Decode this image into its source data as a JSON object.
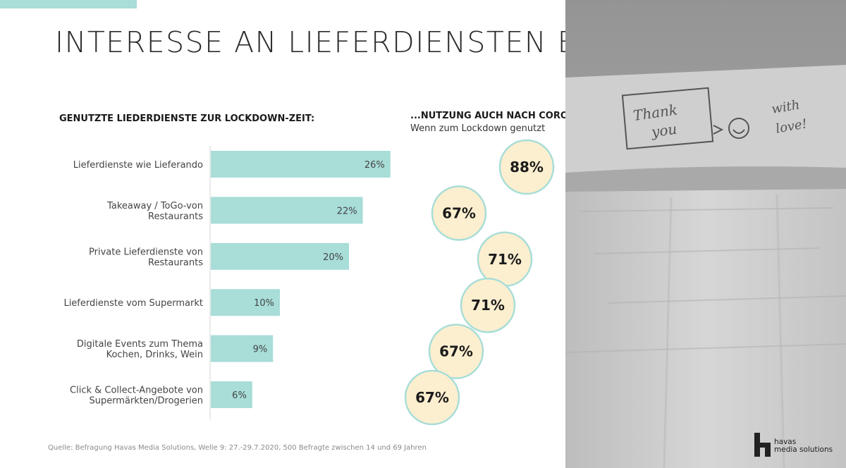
{
  "title": "INTERESSE AN LIEFERDIENSTEN BLEIBT",
  "left_subtitle": "GENUTZTE LIEDERDIENSTE ZUR LOCKDOWN-ZEIT:",
  "right_subtitle": "...NUTZUNG AUCH NACH CORONA?",
  "right_sub_note": "Wenn zum Lockdown genutzt",
  "source": "Quelle: Befragung Havas Media Solutions, Welle 9: 27.-29.7.2020, 500 Befragte zwischen 14 und 69 Jahren",
  "photo": {
    "note_line1": "Thank",
    "note_line2": "you",
    "note_line3": "with",
    "note_line4": "love!"
  },
  "logo": {
    "line1": "havas",
    "line2": "media solutions"
  },
  "colors": {
    "bar": "#a8ddd8",
    "bubble_fill": "#fcefcf",
    "bubble_stroke": "#a8ddd8",
    "accent": "#a8ddd8"
  },
  "chart_data": [
    {
      "type": "bar",
      "orientation": "horizontal",
      "title": "GENUTZTE LIEDERDIENSTE ZUR LOCKDOWN-ZEIT:",
      "categories": [
        [
          "Lieferdienste wie Lieferando"
        ],
        [
          "Takeaway / ToGo-von",
          "Restaurants"
        ],
        [
          "Private Lieferdienste von",
          "Restaurants"
        ],
        [
          "Lieferdienste vom Supermarkt"
        ],
        [
          "Digitale Events zum Thema",
          "Kochen, Drinks, Wein"
        ],
        [
          "Click & Collect-Angebote von",
          "Supermärkten/Drogerien"
        ]
      ],
      "values": [
        26,
        22,
        20,
        10,
        9,
        6
      ],
      "value_labels": [
        "26%",
        "22%",
        "20%",
        "10%",
        "9%",
        "6%"
      ],
      "unit": "%",
      "grid": false
    },
    {
      "type": "bubble",
      "title": "...NUTZUNG AUCH NACH CORONA?",
      "subtitle": "Wenn zum Lockdown genutzt",
      "values": [
        88,
        67,
        71,
        71,
        67,
        67
      ],
      "value_labels": [
        "88%",
        "67%",
        "71%",
        "71%",
        "67%",
        "67%"
      ],
      "unit": "%"
    }
  ]
}
